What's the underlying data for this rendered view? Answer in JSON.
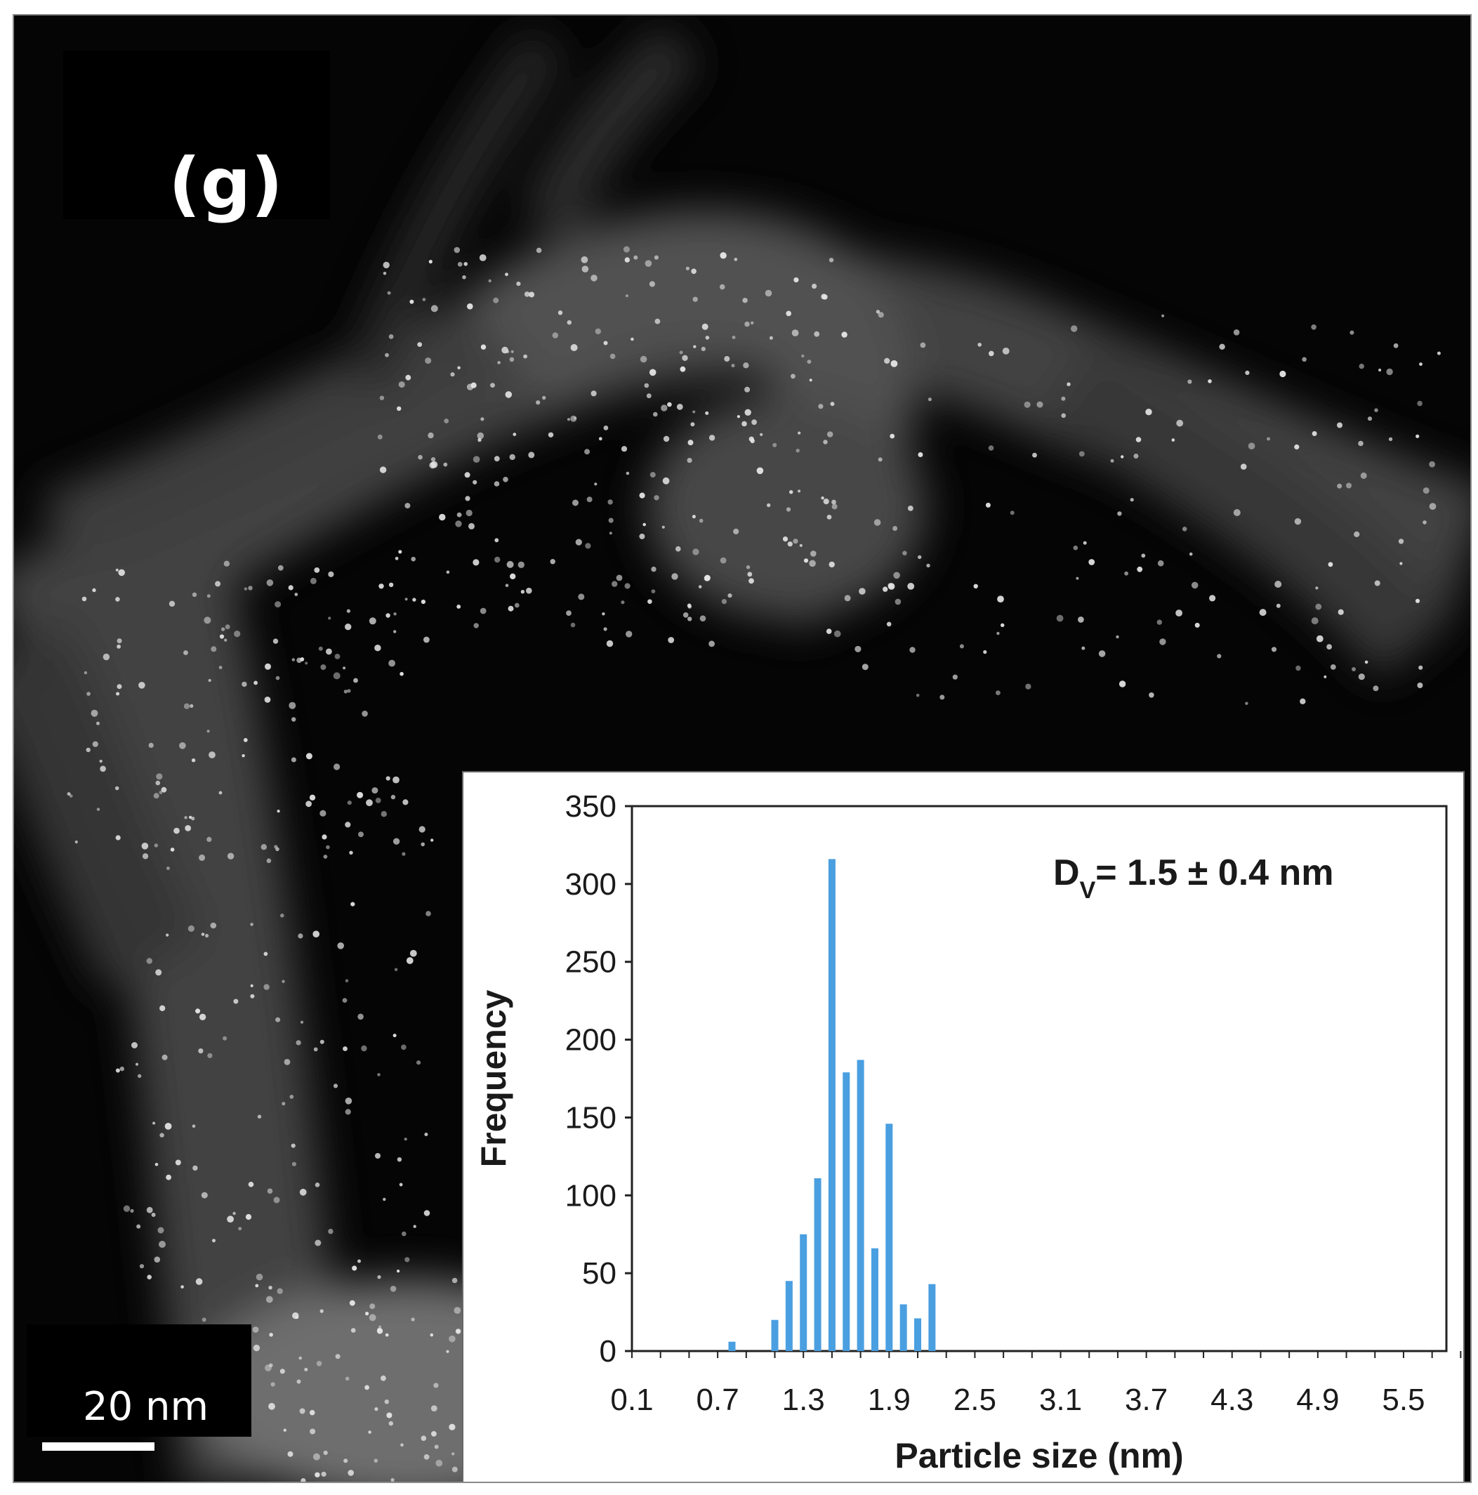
{
  "panel_label": "(g)",
  "scale_bar_label": "20 nm",
  "colors": {
    "bar": "#4a9fe0",
    "background": "#050505"
  },
  "chart_data": {
    "type": "bar",
    "xlabel": "Particle size (nm)",
    "ylabel": "Frequency",
    "annotation": {
      "prefix": "D",
      "subscript": "V",
      "text": "= 1.5 ± 0.4 nm"
    },
    "xlim": [
      0.1,
      5.8
    ],
    "ylim": [
      0,
      350
    ],
    "yticks": [
      0,
      50,
      100,
      150,
      200,
      250,
      300,
      350
    ],
    "xtick_labels": [
      "0.1",
      "0.7",
      "1.3",
      "1.9",
      "2.5",
      "3.1",
      "3.7",
      "4.3",
      "4.9",
      "5.5"
    ],
    "x": [
      0.8,
      1.1,
      1.2,
      1.3,
      1.4,
      1.5,
      1.6,
      1.7,
      1.8,
      1.9,
      2.0,
      2.1,
      2.2
    ],
    "values": [
      6,
      20,
      45,
      75,
      111,
      316,
      179,
      187,
      66,
      146,
      30,
      21,
      43
    ]
  }
}
